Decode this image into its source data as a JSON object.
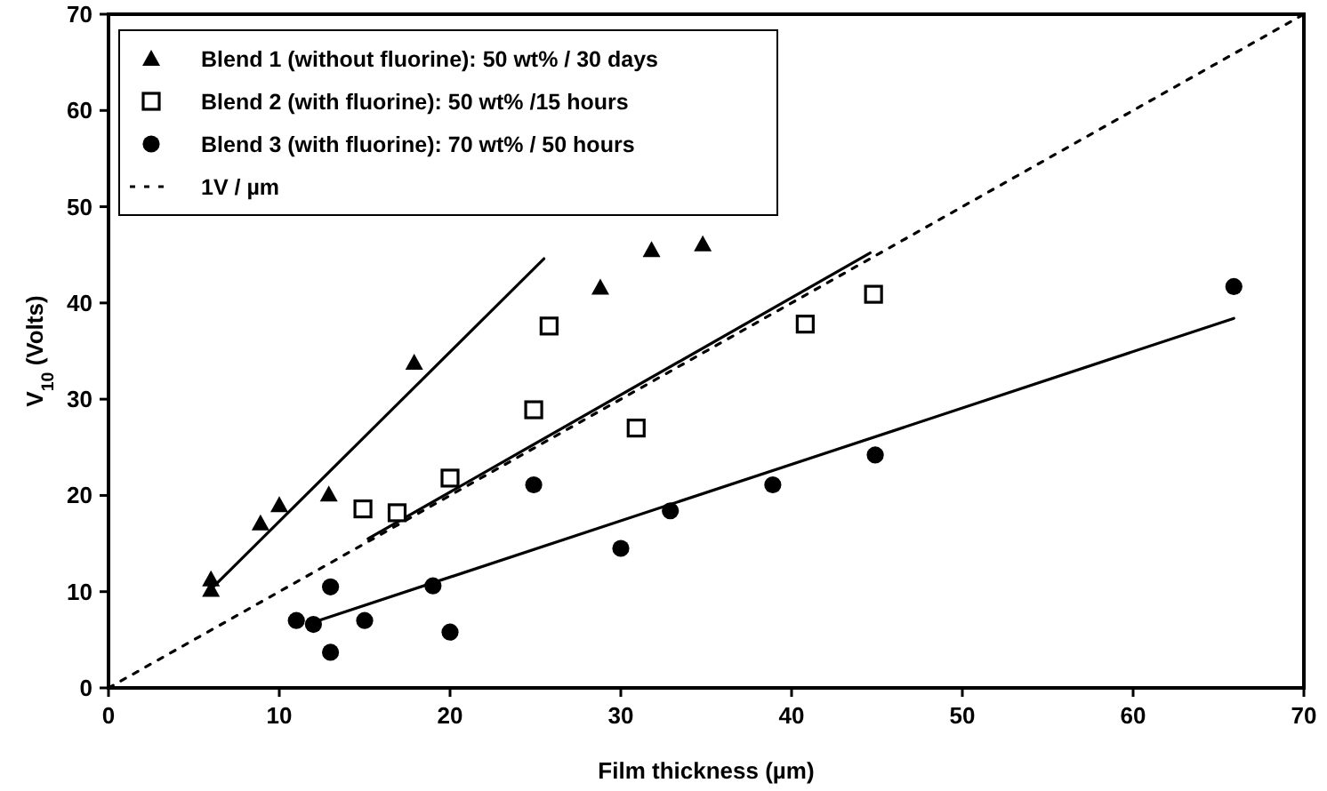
{
  "chart_data": {
    "type": "scatter",
    "xlabel": "Film thickness (µm)",
    "ylabel": "V$_{10}$ (Volts)",
    "xlim": [
      0,
      70
    ],
    "xticks": [
      0,
      10,
      20,
      30,
      40,
      50,
      60,
      70
    ],
    "ylim": [
      0,
      70
    ],
    "yticks": [
      0,
      10,
      20,
      30,
      40,
      50,
      60,
      70
    ],
    "legend": "top left",
    "series": [
      {
        "name": "Blend 1 (without fluorine): 50 wt% / 30 days",
        "type": "scatter",
        "marker": "triangle",
        "color": "#000000",
        "x": [
          6,
          6,
          8.9,
          10,
          12.9,
          17.9,
          28.8,
          31.8,
          34.8
        ],
        "values": [
          11.3,
          10.2,
          17.1,
          19,
          20.1,
          33.8,
          41.6,
          45.5,
          46.1
        ]
      },
      {
        "name": "Blend 2 (with fluorine): 50 wt% /15 hours",
        "type": "scatter",
        "marker": "square",
        "color": "#000000",
        "x": [
          14.9,
          16.9,
          20,
          24.9,
          25.8,
          30.9,
          40.8,
          44.8
        ],
        "values": [
          18.6,
          18.2,
          21.8,
          28.9,
          37.6,
          27,
          37.8,
          40.9
        ]
      },
      {
        "name": "Blend 3 (with fluorine): 70 wt% / 50 hours",
        "type": "scatter",
        "marker": "circle",
        "color": "#000000",
        "x": [
          11,
          12,
          13,
          13,
          15,
          19,
          20,
          24.9,
          30,
          32.9,
          38.9,
          44.9,
          65.9
        ],
        "values": [
          7,
          6.6,
          3.7,
          10.5,
          7,
          10.6,
          5.8,
          21.1,
          14.5,
          18.4,
          21.1,
          24.2,
          41.7
        ]
      },
      {
        "name": "1V / µm",
        "type": "line",
        "line_style": "dotted",
        "color": "#000000",
        "x": [
          0,
          70
        ],
        "values": [
          0,
          70
        ]
      },
      {
        "type": "line",
        "line_style": "solid",
        "color": "#000000",
        "x": [
          6.2,
          25.5
        ],
        "values": [
          10.6,
          44.6
        ]
      },
      {
        "type": "line",
        "line_style": "solid",
        "color": "#000000",
        "x": [
          15.2,
          44.6
        ],
        "values": [
          15.5,
          45.2
        ]
      },
      {
        "type": "line",
        "line_style": "solid",
        "color": "#000000",
        "x": [
          12.3,
          65.9
        ],
        "values": [
          7,
          38.4
        ]
      }
    ]
  }
}
